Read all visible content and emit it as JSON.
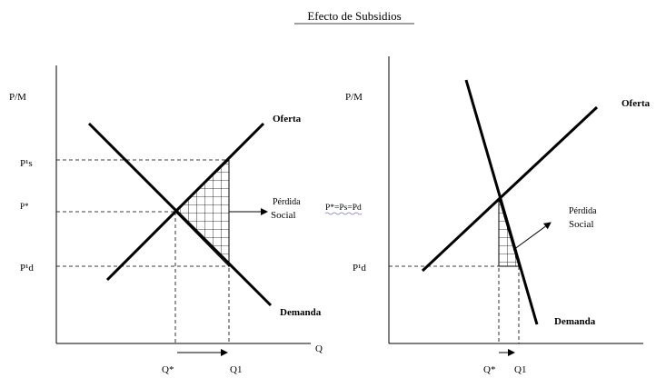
{
  "title": "Efecto de Subsidios",
  "left": {
    "y_axis_label": "P/M",
    "x_axis_label": "Q",
    "supply_label": "Oferta",
    "demand_label": "Demanda",
    "price_ps": "P¹s",
    "price_eq": "P*",
    "price_pd": "P¹d",
    "loss_label_1": "Pérdida",
    "loss_label_2": "Social",
    "q_eq": "Q*",
    "q_1": "Q1"
  },
  "right": {
    "y_axis_label": "P/M",
    "supply_label": "Oferta",
    "demand_label": "Demanda",
    "price_eq": "P*=Ps=Pd",
    "price_pd": "P¹d",
    "loss_label_1": "Pérdida",
    "loss_label_2": "Social",
    "q_eq": "Q*",
    "q_1": "Q1"
  },
  "colors": {
    "ink": "#000000",
    "background": "#ffffff",
    "underline_wavy": "#7a7ad0"
  }
}
